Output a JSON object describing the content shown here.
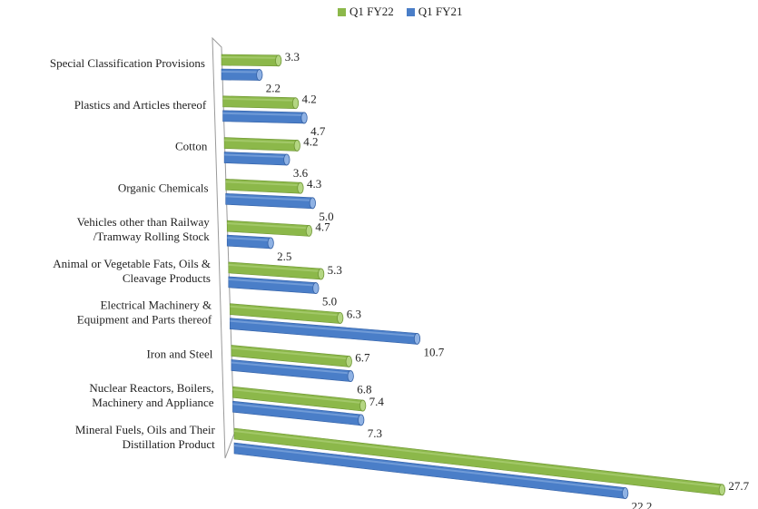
{
  "chart_data": {
    "type": "bar",
    "orientation": "horizontal",
    "style": "3d-cylinder",
    "legend_position": "top",
    "grid": false,
    "categories": [
      [
        "Special Classification Provisions"
      ],
      [
        "Plastics and Articles thereof"
      ],
      [
        "Cotton"
      ],
      [
        "Organic Chemicals"
      ],
      [
        "Vehicles other than Railway",
        "/Tramway Rolling Stock"
      ],
      [
        "Animal or Vegetable Fats, Oils &",
        "Cleavage Products"
      ],
      [
        "Electrical Machinery &",
        "Equipment and Parts thereof"
      ],
      [
        "Iron and Steel"
      ],
      [
        "Nuclear Reactors, Boilers,",
        "Machinery and Appliance"
      ],
      [
        "Mineral Fuels, Oils and Their",
        "Distillation Product"
      ]
    ],
    "series": [
      {
        "name": "Q1 FY22",
        "color": "#8cb84a",
        "values": [
          3.3,
          4.2,
          4.2,
          4.3,
          4.7,
          5.3,
          6.3,
          6.7,
          7.4,
          27.7
        ],
        "labels": [
          "3.3",
          "4.2",
          "4.2",
          "4.3",
          "4.7",
          "5.3",
          "6.3",
          "6.7",
          "7.4",
          "27.7"
        ]
      },
      {
        "name": "Q1 FY21",
        "color": "#4a7ec8",
        "values": [
          2.2,
          4.7,
          3.6,
          5.0,
          2.5,
          5.0,
          10.7,
          6.8,
          7.3,
          22.2
        ],
        "labels": [
          "2.2",
          "4.7",
          "3.6",
          "5.0",
          "2.5",
          "5.0",
          "10.7",
          "6.8",
          "7.3",
          "22.2"
        ]
      }
    ]
  }
}
